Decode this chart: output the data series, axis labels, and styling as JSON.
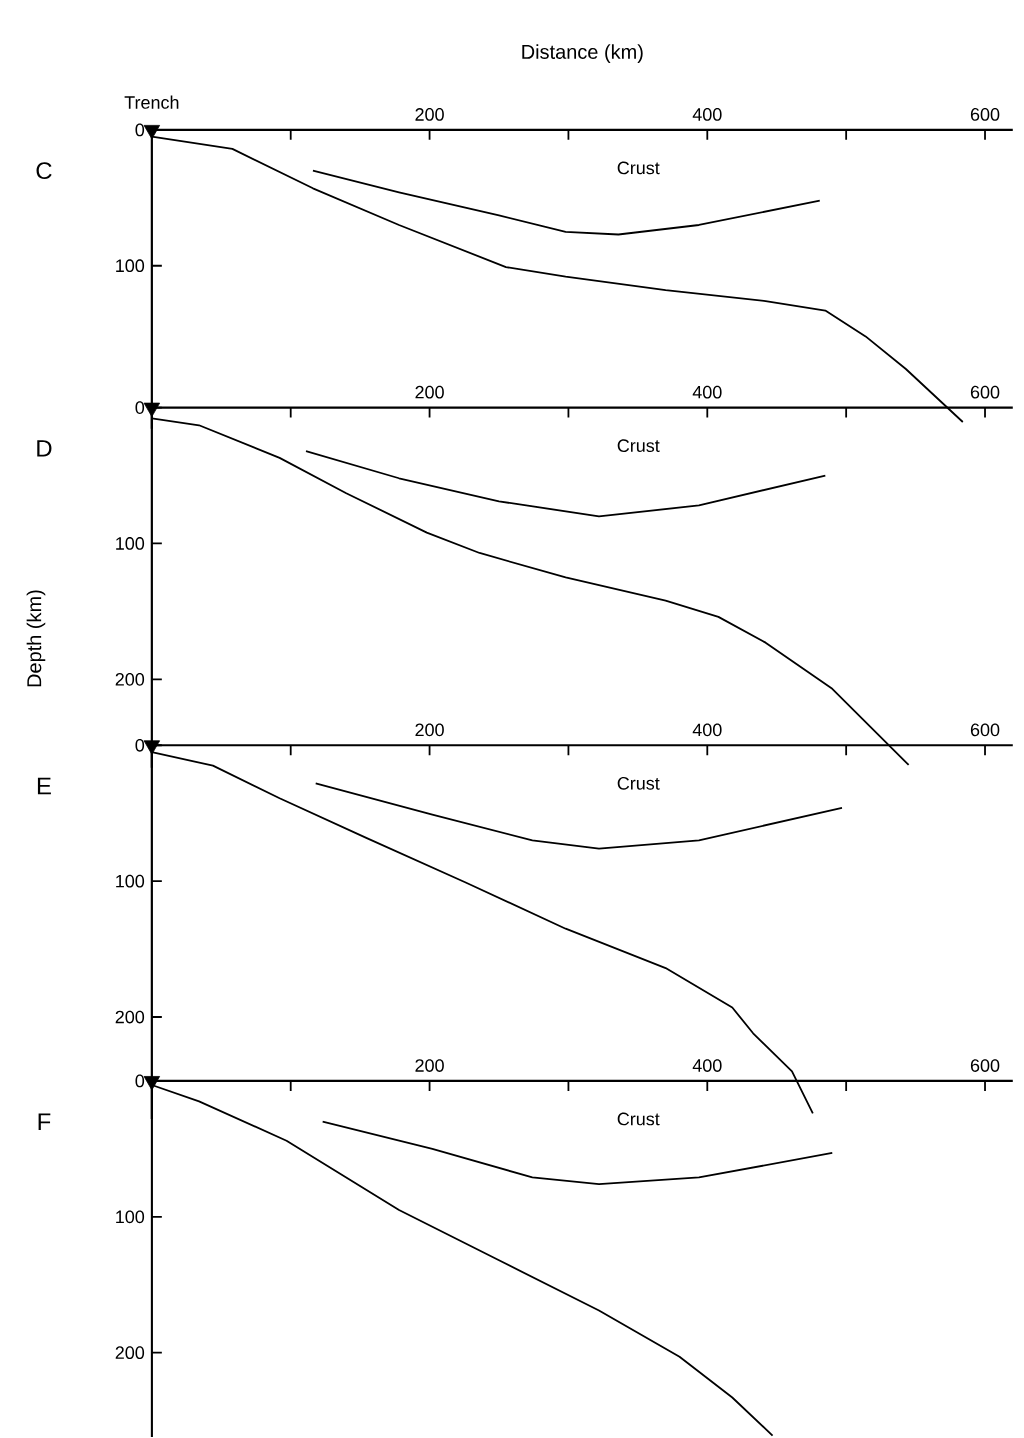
{
  "chart_data": [
    {
      "type": "line",
      "title": "C",
      "xlabel": "Distance (km)",
      "xlim": [
        0,
        620
      ],
      "ylim": [
        220,
        0
      ],
      "xticks": [
        {
          "value": 100,
          "label": null
        },
        200,
        {
          "value": 300,
          "label": null
        },
        400,
        {
          "value": 500,
          "label": null
        },
        600
      ],
      "yticks": [
        0,
        100
      ],
      "annotations": [
        "Trench",
        "Crust"
      ],
      "series": [
        {
          "color": "#000000",
          "x": [
            0,
            58,
            116,
            178,
            255,
            298,
            370,
            442,
            485,
            514,
            543,
            584
          ],
          "values": [
            5,
            14,
            43,
            70,
            101,
            108,
            118,
            126,
            133,
            152,
            176,
            215
          ]
        },
        {
          "color": "#000000",
          "x": [
            116,
            178,
            250,
            298,
            336,
            394,
            481
          ],
          "values": [
            30,
            46,
            63,
            75,
            77,
            70,
            52
          ]
        },
        {
          "type": "scatter",
          "marker": "triangle",
          "color": "#000000",
          "x": [
            0
          ],
          "values": [
            0
          ]
        }
      ]
    },
    {
      "type": "line",
      "title": "D",
      "ylabel": "Depth (km)",
      "xlim": [
        0,
        620
      ],
      "ylim": [
        265,
        0
      ],
      "xticks": [
        {
          "value": 100,
          "label": null
        },
        200,
        {
          "value": 300,
          "label": null
        },
        400,
        {
          "value": 500,
          "label": null
        },
        600
      ],
      "yticks": [
        0,
        100,
        200
      ],
      "annotations": [
        "Crust"
      ],
      "series": [
        {
          "color": "#000000",
          "x": [
            0,
            34,
            92,
            140,
            198,
            236,
            298,
            370,
            408,
            442,
            490,
            545
          ],
          "values": [
            8,
            13,
            37,
            63,
            92,
            107,
            125,
            142,
            154,
            173,
            207,
            263
          ]
        },
        {
          "color": "#000000",
          "x": [
            111,
            178,
            250,
            322,
            394,
            485
          ],
          "values": [
            32,
            52,
            69,
            80,
            72,
            50
          ]
        },
        {
          "type": "scatter",
          "marker": "triangle",
          "color": "#000000",
          "x": [
            0
          ],
          "values": [
            0
          ]
        }
      ]
    },
    {
      "type": "line",
      "title": "E",
      "xlim": [
        0,
        620
      ],
      "ylim": [
        275,
        0
      ],
      "xticks": [
        {
          "value": 100,
          "label": null
        },
        200,
        {
          "value": 300,
          "label": null
        },
        400,
        {
          "value": 500,
          "label": null
        },
        600
      ],
      "yticks": [
        0,
        100,
        200
      ],
      "annotations": [
        "Crust"
      ],
      "series": [
        {
          "color": "#000000",
          "x": [
            0,
            44,
            92,
            154,
            226,
            298,
            370,
            418,
            433,
            461,
            476
          ],
          "values": [
            5,
            15,
            39,
            68,
            101,
            135,
            164,
            193,
            212,
            240,
            271
          ]
        },
        {
          "color": "#000000",
          "x": [
            118,
            202,
            274,
            322,
            394,
            497
          ],
          "values": [
            28,
            51,
            70,
            76,
            70,
            46
          ]
        },
        {
          "type": "scatter",
          "marker": "triangle",
          "color": "#000000",
          "x": [
            0
          ],
          "values": [
            0
          ]
        }
      ]
    },
    {
      "type": "line",
      "title": "F",
      "xlim": [
        0,
        620
      ],
      "ylim": [
        262,
        0
      ],
      "xticks": [
        {
          "value": 100,
          "label": null
        },
        200,
        {
          "value": 300,
          "label": null
        },
        400,
        {
          "value": 500,
          "label": null
        },
        600
      ],
      "yticks": [
        0,
        100,
        200
      ],
      "annotations": [
        "Crust"
      ],
      "series": [
        {
          "color": "#000000",
          "x": [
            0,
            34,
            97,
            178,
            250,
            322,
            380,
            418,
            447
          ],
          "values": [
            3,
            15,
            44,
            95,
            132,
            169,
            203,
            233,
            261
          ]
        },
        {
          "color": "#000000",
          "x": [
            123,
            202,
            274,
            322,
            394,
            490
          ],
          "values": [
            30,
            50,
            71,
            76,
            71,
            53
          ]
        },
        {
          "type": "scatter",
          "marker": "triangle",
          "color": "#000000",
          "x": [
            0
          ],
          "values": [
            0
          ]
        }
      ]
    }
  ]
}
